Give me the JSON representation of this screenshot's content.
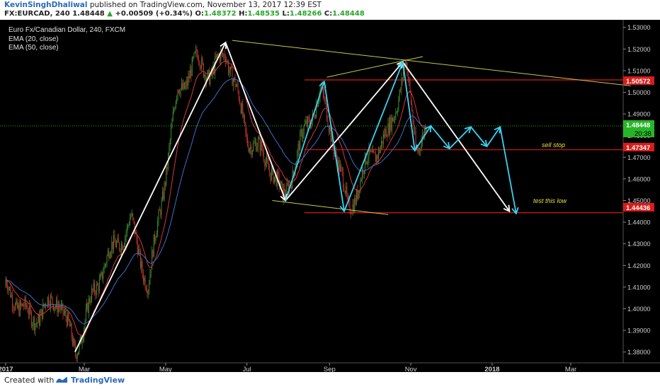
{
  "header": {
    "author": "KevinSinghDhaliwal",
    "published": "published on TradingView.com, November 13, 2017 12:39 EST",
    "symbol": "FX:EURCAD, 240",
    "last": "1.48448",
    "change": "+0.00509 (+0.34%)",
    "o_label": "O:",
    "o": "1.48372",
    "h_label": "H:",
    "h": "1.48535",
    "l_label": "L:",
    "l": "1.48266",
    "c_label": "C:",
    "c": "1.48448"
  },
  "legend": {
    "title": "Euro Fx/Canadian Dollar, 240, FXCM",
    "ema20": "EMA (20, close)",
    "ema50": "EMA (50, close)"
  },
  "annotations": {
    "sell_stop": "sell stop",
    "test_low": "test this low"
  },
  "price_tags": {
    "p1": "1.50572",
    "p2": "1.48448",
    "p3": "20:38",
    "p4": "1.47347",
    "p5": "1.44436"
  },
  "footer": {
    "created_with": "Created with",
    "brand": "TradingView"
  },
  "colors": {
    "background": "#000000",
    "candle_up": "#3a8a2e",
    "candle_down": "#c23030",
    "ema20": "#d23a3a",
    "ema50": "#3f6fc6",
    "zigzag_white": "#ffffff",
    "zigzag_cyan": "#3ad3f2",
    "trendline": "#c8c84a",
    "level_line": "#d81b1b",
    "current_line": "#26b526"
  },
  "chart_data": {
    "type": "candlestick",
    "title": "Euro Fx/Canadian Dollar, 240, FXCM",
    "y_ticks": [
      "1.53000",
      "1.52000",
      "1.51000",
      "1.50000",
      "1.49000",
      "1.48000",
      "1.47000",
      "1.46000",
      "1.45000",
      "1.44000",
      "1.43000",
      "1.42000",
      "1.41000",
      "1.40000",
      "1.39000",
      "1.38000"
    ],
    "ylim": [
      1.375,
      1.5335
    ],
    "x_ticks": [
      "2017",
      "Mar",
      "May",
      "Jul",
      "Sep",
      "Nov",
      "2018",
      "Mar"
    ],
    "price_path": [
      {
        "date": "2017-01-01",
        "price": 1.41
      },
      {
        "date": "2017-01-20",
        "price": 1.395
      },
      {
        "date": "2017-02-10",
        "price": 1.405
      },
      {
        "date": "2017-02-22",
        "price": 1.38
      },
      {
        "date": "2017-03-15",
        "price": 1.42
      },
      {
        "date": "2017-04-05",
        "price": 1.44
      },
      {
        "date": "2017-04-18",
        "price": 1.41
      },
      {
        "date": "2017-05-10",
        "price": 1.5
      },
      {
        "date": "2017-05-25",
        "price": 1.515
      },
      {
        "date": "2017-06-05",
        "price": 1.508
      },
      {
        "date": "2017-06-15",
        "price": 1.52
      },
      {
        "date": "2017-07-01",
        "price": 1.48
      },
      {
        "date": "2017-07-20",
        "price": 1.465
      },
      {
        "date": "2017-07-28",
        "price": 1.45
      },
      {
        "date": "2017-08-15",
        "price": 1.485
      },
      {
        "date": "2017-08-25",
        "price": 1.5
      },
      {
        "date": "2017-09-05",
        "price": 1.475
      },
      {
        "date": "2017-09-15",
        "price": 1.445
      },
      {
        "date": "2017-10-01",
        "price": 1.47
      },
      {
        "date": "2017-10-15",
        "price": 1.48
      },
      {
        "date": "2017-10-28",
        "price": 1.513
      },
      {
        "date": "2017-11-05",
        "price": 1.475
      },
      {
        "date": "2017-11-13",
        "price": 1.4845
      }
    ],
    "horizontal_levels": [
      {
        "price": 1.50572,
        "style": "red"
      },
      {
        "price": 1.48448,
        "style": "green-dotted"
      },
      {
        "price": 1.47347,
        "style": "red"
      },
      {
        "price": 1.44436,
        "style": "red"
      }
    ],
    "trendlines": [
      {
        "from": {
          "date": "2017-06-20",
          "price": 1.524
        },
        "to": {
          "date": "2018-04-15",
          "price": 1.503
        }
      },
      {
        "from": {
          "date": "2017-08-30",
          "price": 1.507
        },
        "to": {
          "date": "2017-11-10",
          "price": 1.5165
        }
      },
      {
        "from": {
          "date": "2017-07-20",
          "price": 1.45
        },
        "to": {
          "date": "2017-10-15",
          "price": 1.4435
        }
      }
    ],
    "zigzag_white": [
      {
        "date": "2017-02-22",
        "price": 1.38
      },
      {
        "date": "2017-06-15",
        "price": 1.523
      },
      {
        "date": "2017-07-30",
        "price": 1.45
      },
      {
        "date": "2017-10-26",
        "price": 1.514
      },
      {
        "date": "2018-01-14",
        "price": 1.445
      }
    ],
    "zigzag_cyan": [
      {
        "date": "2017-07-30",
        "price": 1.45
      },
      {
        "date": "2017-08-28",
        "price": 1.505
      },
      {
        "date": "2017-09-12",
        "price": 1.445
      },
      {
        "date": "2017-10-26",
        "price": 1.514
      },
      {
        "date": "2017-11-04",
        "price": 1.473
      },
      {
        "date": "2017-11-16",
        "price": 1.4845
      },
      {
        "date": "2017-11-30",
        "price": 1.474
      },
      {
        "date": "2017-12-16",
        "price": 1.484
      },
      {
        "date": "2017-12-28",
        "price": 1.475
      },
      {
        "date": "2018-01-07",
        "price": 1.484
      },
      {
        "date": "2018-01-19",
        "price": 1.444
      }
    ]
  }
}
